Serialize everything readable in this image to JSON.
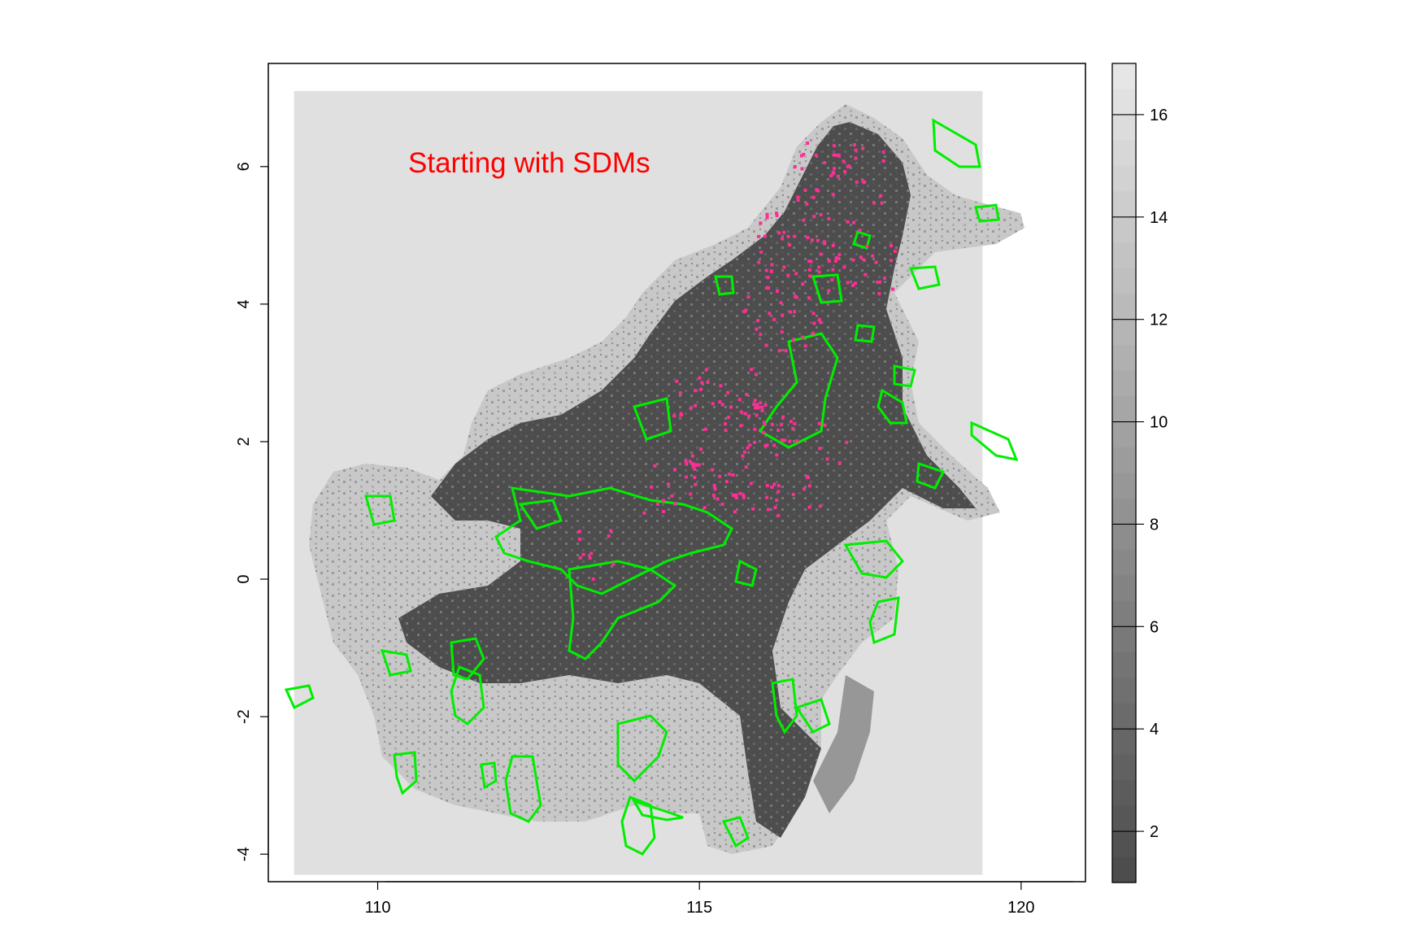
{
  "map": {
    "annotation": "Starting with SDMs",
    "annotation_color": "#ff0000",
    "x_axis": {
      "ticks": [
        110,
        115,
        120
      ],
      "labels": [
        "110",
        "115",
        "120"
      ],
      "range": [
        108.3,
        121.0
      ]
    },
    "y_axis": {
      "ticks": [
        6,
        4,
        2,
        0,
        -2,
        -4
      ],
      "labels": [
        "6",
        "4",
        "2",
        "0",
        "-2",
        "-4"
      ],
      "range": [
        -4.4,
        7.5
      ]
    },
    "raster_extent": {
      "x": [
        108.7,
        119.4
      ],
      "y": [
        -4.3,
        7.1
      ]
    },
    "background_color": "#e0e0e0",
    "land_dark_color": "#4d4d4d",
    "land_mid_color": "#8a8a8a",
    "land_light_color": "#c8c8c8",
    "polygon_color": "#00ee00",
    "point_color": "#ff2d95"
  },
  "legend": {
    "labels": [
      "16",
      "14",
      "12",
      "10",
      "8",
      "6",
      "4",
      "2"
    ],
    "values": [
      16,
      14,
      12,
      10,
      8,
      6,
      4,
      2
    ],
    "range": [
      1,
      17
    ]
  }
}
